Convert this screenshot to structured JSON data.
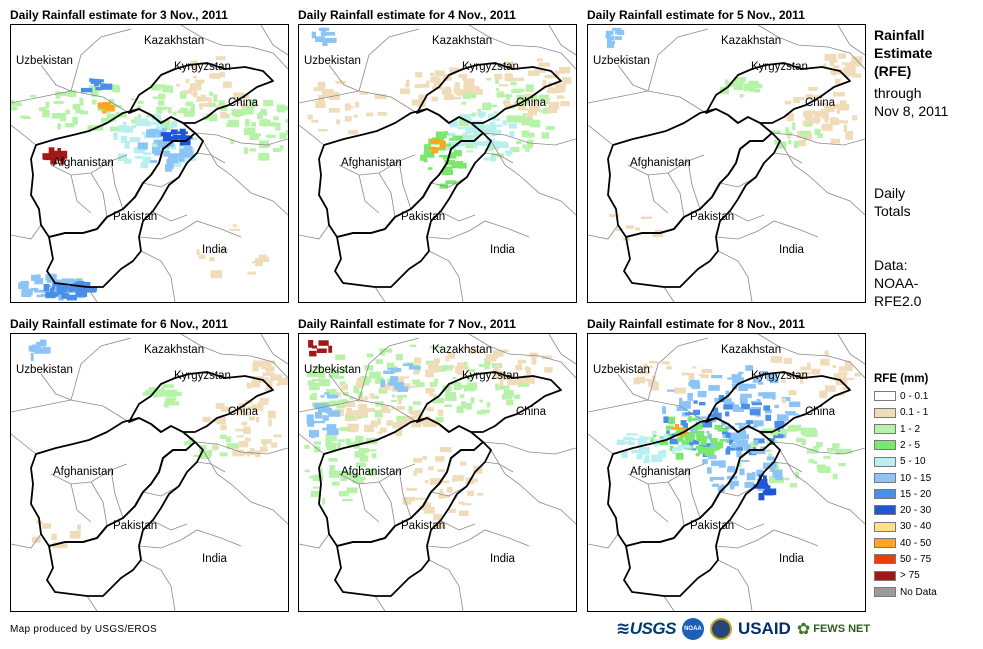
{
  "panels": [
    {
      "title": "Daily Rainfall estimate for 3 Nov., 2011",
      "wet": "heavy"
    },
    {
      "title": "Daily Rainfall estimate for 4 Nov., 2011",
      "wet": "moderate"
    },
    {
      "title": "Daily Rainfall estimate for 5 Nov., 2011",
      "wet": "light"
    },
    {
      "title": "Daily Rainfall estimate for 6 Nov., 2011",
      "wet": "light"
    },
    {
      "title": "Daily Rainfall estimate for 7 Nov., 2011",
      "wet": "north"
    },
    {
      "title": "Daily Rainfall estimate for 8 Nov., 2011",
      "wet": "northeast"
    }
  ],
  "country_labels": {
    "kazakhstan": "Kazakhstan",
    "uzbekistan": "Uzbekistan",
    "kyrgyzstan": "Kyrgyzstan",
    "china": "China",
    "afghanistan": "Afghanistan",
    "pakistan": "Pakistan",
    "india": "India"
  },
  "side_text": {
    "title_line1": "Rainfall",
    "title_line2": "Estimate",
    "title_line3": "(RFE)",
    "through": "through",
    "date": "Nov 8, 2011",
    "daily1": "Daily",
    "daily2": "Totals",
    "data1": "Data:",
    "data2": "NOAA-",
    "data3": "RFE2.0"
  },
  "legend": {
    "title": "RFE (mm)",
    "items": [
      {
        "label": "0 - 0.1",
        "color": "#ffffff"
      },
      {
        "label": "0.1 - 1",
        "color": "#f0dcb8"
      },
      {
        "label": "1 - 2",
        "color": "#b6f2a8"
      },
      {
        "label": "2 - 5",
        "color": "#7ae86e"
      },
      {
        "label": "5 - 10",
        "color": "#b8f0f2"
      },
      {
        "label": "10 - 15",
        "color": "#8cc4f5"
      },
      {
        "label": "15 - 20",
        "color": "#4a8fe6"
      },
      {
        "label": "20 - 30",
        "color": "#1f55d6"
      },
      {
        "label": "30 - 40",
        "color": "#ffe08a"
      },
      {
        "label": "40 - 50",
        "color": "#ffa51f"
      },
      {
        "label": "50 - 75",
        "color": "#f03a0a"
      },
      {
        "label": "> 75",
        "color": "#a01818"
      },
      {
        "label": "No Data",
        "color": "#9a9a9a"
      }
    ]
  },
  "credit": "Map produced by USGS/EROS",
  "logos": {
    "usgs": "USGS",
    "noaa": "NOAA",
    "usaid": "USAID",
    "fews": "FEWS NET"
  }
}
